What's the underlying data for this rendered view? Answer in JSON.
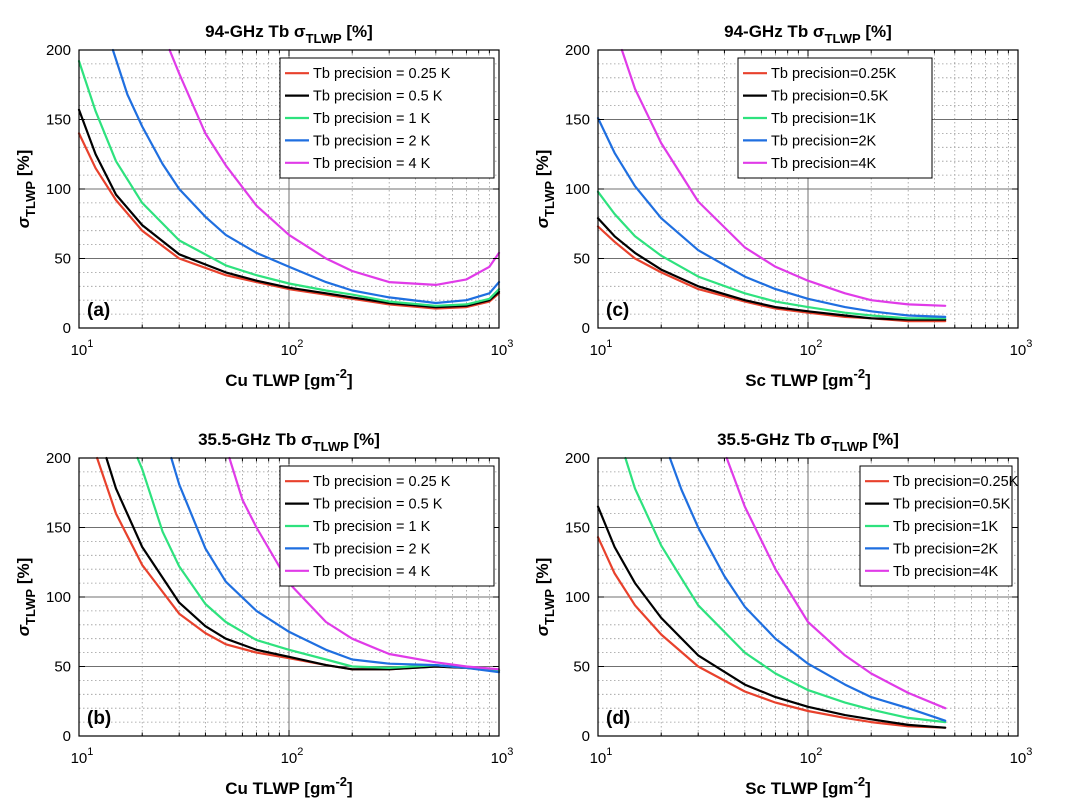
{
  "chart_data": [
    {
      "id": "a",
      "type": "line",
      "panel_label": "(a)",
      "title_main": "94-GHz Tb σ",
      "title_sub": "TLWP",
      "title_suffix": "[%]",
      "xlabel_main": "Cu TLWP [gm",
      "xlabel_sup": "-2",
      "xlabel_suffix": "]",
      "ylabel_main": "σ",
      "ylabel_sub": "TLWP",
      "ylabel_suffix": "[%]",
      "xscale": "log",
      "xlim": [
        10,
        1000
      ],
      "ylim": [
        0,
        200
      ],
      "grid": true,
      "legend_position": "top-right",
      "x_tick_labels": [
        {
          "base": "10",
          "exp": "1"
        },
        {
          "base": "10",
          "exp": "2"
        },
        {
          "base": "10",
          "exp": "3"
        }
      ],
      "y_tick_labels": [
        "0",
        "50",
        "100",
        "150",
        "200"
      ],
      "series": [
        {
          "name": "Tb precision = 0.25 K",
          "color": "#e8412c",
          "x": [
            10,
            12,
            15,
            20,
            30,
            50,
            70,
            100,
            150,
            200,
            300,
            500,
            700,
            900,
            1000
          ],
          "y": [
            140,
            115,
            92,
            70,
            50,
            38,
            33,
            28,
            24,
            21,
            17,
            14,
            15,
            19,
            25
          ]
        },
        {
          "name": "Tb precision = 0.5 K",
          "color": "#000000",
          "x": [
            10,
            12,
            15,
            20,
            30,
            50,
            70,
            100,
            150,
            200,
            300,
            500,
            700,
            900,
            1000
          ],
          "y": [
            157,
            125,
            96,
            74,
            53,
            40,
            34,
            29,
            25,
            22,
            18,
            15,
            16,
            20,
            26
          ]
        },
        {
          "name": "Tb precision = 1 K",
          "color": "#2ee27e",
          "x": [
            10,
            12,
            15,
            20,
            30,
            50,
            70,
            100,
            150,
            200,
            300,
            500,
            700,
            900,
            1000
          ],
          "y": [
            192,
            156,
            120,
            90,
            63,
            45,
            38,
            32,
            27,
            24,
            19,
            16,
            17,
            21,
            28
          ]
        },
        {
          "name": "Tb precision = 2 K",
          "color": "#1f6fe0",
          "x": [
            14.5,
            17,
            20,
            25,
            30,
            40,
            50,
            70,
            100,
            150,
            200,
            300,
            500,
            700,
            900,
            1000
          ],
          "y": [
            200,
            168,
            145,
            118,
            100,
            80,
            67,
            54,
            44,
            33,
            27,
            22,
            18,
            20,
            25,
            33
          ]
        },
        {
          "name": "Tb precision = 4 K",
          "color": "#e03be8",
          "x": [
            27,
            30,
            40,
            50,
            70,
            100,
            150,
            200,
            300,
            500,
            700,
            900,
            1000
          ],
          "y": [
            200,
            183,
            140,
            117,
            88,
            67,
            50,
            41,
            33,
            31,
            35,
            44,
            54
          ]
        }
      ]
    },
    {
      "id": "c",
      "type": "line",
      "panel_label": "(c)",
      "title_main": "94-GHz Tb σ",
      "title_sub": "TLWP",
      "title_suffix": "[%]",
      "xlabel_main": "Sc TLWP [gm",
      "xlabel_sup": "-2",
      "xlabel_suffix": "]",
      "ylabel_main": "σ",
      "ylabel_sub": "TLWP",
      "ylabel_suffix": "[%]",
      "xscale": "log",
      "xlim": [
        10,
        1000
      ],
      "ylim": [
        0,
        200
      ],
      "grid": true,
      "legend_position": "top-right",
      "x_tick_labels": [
        {
          "base": "10",
          "exp": "1"
        },
        {
          "base": "10",
          "exp": "2"
        },
        {
          "base": "10",
          "exp": "3"
        }
      ],
      "y_tick_labels": [
        "0",
        "50",
        "100",
        "150",
        "200"
      ],
      "series": [
        {
          "name": "Tb precision=0.25K",
          "color": "#e8412c",
          "x": [
            10,
            12,
            15,
            20,
            30,
            50,
            70,
            100,
            150,
            200,
            300,
            450
          ],
          "y": [
            73,
            62,
            50,
            40,
            28,
            19,
            14,
            11,
            8,
            7,
            5,
            5
          ]
        },
        {
          "name": "Tb precision=0.5K",
          "color": "#000000",
          "x": [
            10,
            12,
            15,
            20,
            30,
            50,
            70,
            100,
            150,
            200,
            300,
            450
          ],
          "y": [
            79,
            66,
            54,
            42,
            30,
            20,
            15,
            12,
            9,
            7,
            6,
            6
          ]
        },
        {
          "name": "Tb precision=1K",
          "color": "#2ee27e",
          "x": [
            10,
            12,
            15,
            20,
            30,
            50,
            70,
            100,
            150,
            200,
            300,
            450
          ],
          "y": [
            98,
            82,
            66,
            52,
            37,
            25,
            19,
            15,
            11,
            9,
            7,
            7
          ]
        },
        {
          "name": "Tb precision=2K",
          "color": "#1f6fe0",
          "x": [
            10,
            12,
            15,
            20,
            30,
            50,
            70,
            100,
            150,
            200,
            300,
            450
          ],
          "y": [
            151,
            126,
            102,
            79,
            56,
            37,
            28,
            21,
            15,
            12,
            9,
            8
          ]
        },
        {
          "name": "Tb precision=4K",
          "color": "#e03be8",
          "x": [
            13,
            15,
            20,
            30,
            50,
            70,
            100,
            150,
            200,
            300,
            450
          ],
          "y": [
            200,
            172,
            133,
            91,
            58,
            44,
            34,
            25,
            20,
            17,
            16
          ]
        }
      ]
    },
    {
      "id": "b",
      "type": "line",
      "panel_label": "(b)",
      "title_main": "35.5-GHz Tb σ",
      "title_sub": "TLWP",
      "title_suffix": "[%]",
      "xlabel_main": "Cu TLWP [gm",
      "xlabel_sup": "-2",
      "xlabel_suffix": "]",
      "ylabel_main": "σ",
      "ylabel_sub": "TLWP",
      "ylabel_suffix": "[%]",
      "xscale": "log",
      "xlim": [
        10,
        1000
      ],
      "ylim": [
        0,
        200
      ],
      "grid": true,
      "legend_position": "top-right",
      "x_tick_labels": [
        {
          "base": "10",
          "exp": "1"
        },
        {
          "base": "10",
          "exp": "2"
        },
        {
          "base": "10",
          "exp": "3"
        }
      ],
      "y_tick_labels": [
        "0",
        "50",
        "100",
        "150",
        "200"
      ],
      "series": [
        {
          "name": "Tb precision = 0.25 K",
          "color": "#e8412c",
          "x": [
            12.2,
            15,
            20,
            30,
            40,
            50,
            70,
            100,
            150,
            200,
            300,
            500,
            700,
            1000
          ],
          "y": [
            200,
            160,
            123,
            88,
            74,
            66,
            60,
            56,
            51,
            48,
            48,
            50,
            49,
            47
          ]
        },
        {
          "name": "Tb precision = 0.5 K",
          "color": "#000000",
          "x": [
            13.5,
            15,
            20,
            30,
            40,
            50,
            70,
            100,
            150,
            200,
            300,
            500,
            700,
            1000
          ],
          "y": [
            200,
            178,
            136,
            96,
            79,
            70,
            62,
            57,
            51,
            48,
            48,
            50,
            49,
            47
          ]
        },
        {
          "name": "Tb precision = 1 K",
          "color": "#2ee27e",
          "x": [
            19,
            20,
            25,
            30,
            40,
            50,
            70,
            100,
            150,
            200,
            300,
            500,
            700,
            1000
          ],
          "y": [
            200,
            192,
            147,
            122,
            95,
            82,
            69,
            62,
            55,
            50,
            49,
            51,
            49,
            47
          ]
        },
        {
          "name": "Tb precision = 2 K",
          "color": "#1f6fe0",
          "x": [
            27.5,
            30,
            40,
            50,
            70,
            100,
            150,
            200,
            300,
            500,
            700,
            1000
          ],
          "y": [
            200,
            181,
            135,
            111,
            90,
            75,
            62,
            55,
            52,
            51,
            49,
            46
          ]
        },
        {
          "name": "Tb precision = 4 K",
          "color": "#e03be8",
          "x": [
            52,
            60,
            70,
            100,
            150,
            200,
            300,
            500,
            700,
            1000
          ],
          "y": [
            200,
            170,
            150,
            110,
            82,
            70,
            59,
            53,
            50,
            48
          ]
        }
      ]
    },
    {
      "id": "d",
      "type": "line",
      "panel_label": "(d)",
      "title_main": "35.5-GHz Tb σ",
      "title_sub": "TLWP",
      "title_suffix": "[%]",
      "xlabel_main": "Sc TLWP [gm",
      "xlabel_sup": "-2",
      "xlabel_suffix": "]",
      "ylabel_main": "σ",
      "ylabel_sub": "TLWP",
      "ylabel_suffix": "[%]",
      "xscale": "log",
      "xlim": [
        10,
        1000
      ],
      "ylim": [
        0,
        200
      ],
      "grid": true,
      "legend_position": "top-right",
      "x_tick_labels": [
        {
          "base": "10",
          "exp": "1"
        },
        {
          "base": "10",
          "exp": "2"
        },
        {
          "base": "10",
          "exp": "3"
        }
      ],
      "y_tick_labels": [
        "0",
        "50",
        "100",
        "150",
        "200"
      ],
      "series": [
        {
          "name": "Tb precision=0.25K",
          "color": "#e8412c",
          "x": [
            10,
            12,
            15,
            20,
            30,
            50,
            70,
            100,
            150,
            200,
            300,
            450
          ],
          "y": [
            143,
            117,
            94,
            73,
            50,
            32,
            24,
            18,
            13,
            10,
            7,
            6
          ]
        },
        {
          "name": "Tb precision=0.5K",
          "color": "#000000",
          "x": [
            10,
            12,
            15,
            20,
            30,
            50,
            70,
            100,
            150,
            200,
            300,
            450
          ],
          "y": [
            165,
            136,
            110,
            85,
            58,
            37,
            28,
            21,
            15,
            12,
            8,
            6
          ]
        },
        {
          "name": "Tb precision=1K",
          "color": "#2ee27e",
          "x": [
            13.5,
            15,
            20,
            30,
            50,
            70,
            100,
            150,
            200,
            300,
            450
          ],
          "y": [
            200,
            178,
            137,
            94,
            60,
            45,
            33,
            24,
            19,
            13,
            10
          ]
        },
        {
          "name": "Tb precision=2K",
          "color": "#1f6fe0",
          "x": [
            22,
            25,
            30,
            40,
            50,
            70,
            100,
            150,
            200,
            300,
            450
          ],
          "y": [
            200,
            177,
            150,
            115,
            93,
            70,
            52,
            37,
            28,
            20,
            11
          ]
        },
        {
          "name": "Tb precision=4K",
          "color": "#e03be8",
          "x": [
            41,
            50,
            70,
            100,
            150,
            200,
            300,
            450
          ],
          "y": [
            200,
            165,
            120,
            82,
            58,
            45,
            31,
            20
          ]
        }
      ]
    }
  ]
}
